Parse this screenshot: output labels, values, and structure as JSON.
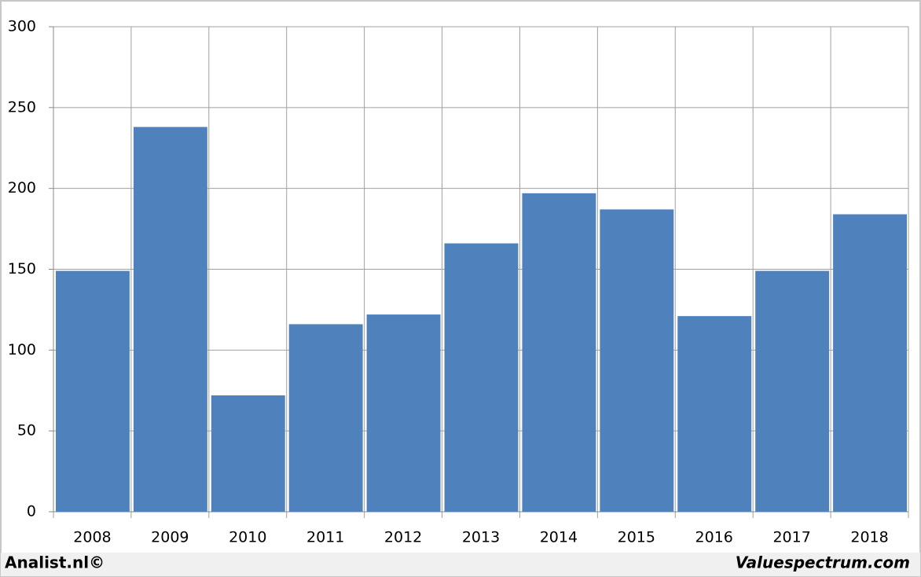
{
  "chart_data": {
    "type": "bar",
    "categories": [
      "2008",
      "2009",
      "2010",
      "2011",
      "2012",
      "2013",
      "2014",
      "2015",
      "2016",
      "2017",
      "2018"
    ],
    "values": [
      149,
      238,
      72,
      116,
      122,
      166,
      197,
      187,
      121,
      149,
      184
    ],
    "color": "#4f81bd",
    "ylim": [
      0,
      300
    ],
    "yticks": [
      0,
      50,
      100,
      150,
      200,
      250,
      300
    ],
    "grid": true,
    "source": "Analist.nl©",
    "credit": "Valuespectrum.com"
  }
}
